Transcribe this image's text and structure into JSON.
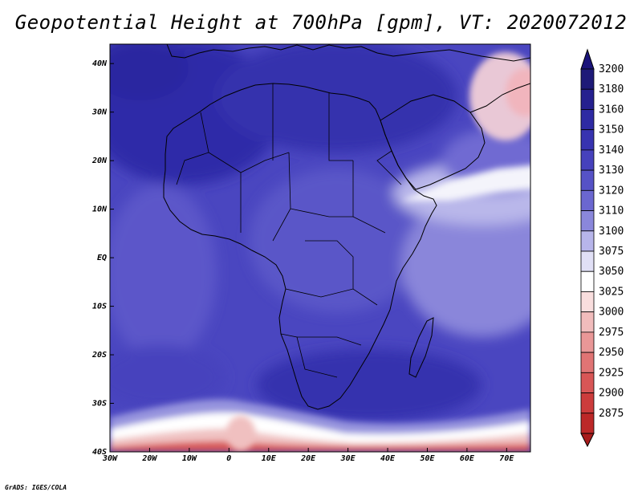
{
  "title": "Geopotential Height at 700hPa [gpm], VT: 2020072012",
  "footer": "GrADS: IGES/COLA",
  "map": {
    "lon_range": [
      -30,
      76
    ],
    "lat_range": [
      -40,
      44
    ],
    "x_ticks": [
      {
        "lon": -30,
        "label": "30W"
      },
      {
        "lon": -20,
        "label": "20W"
      },
      {
        "lon": -10,
        "label": "10W"
      },
      {
        "lon": 0,
        "label": "0"
      },
      {
        "lon": 10,
        "label": "10E"
      },
      {
        "lon": 20,
        "label": "20E"
      },
      {
        "lon": 30,
        "label": "30E"
      },
      {
        "lon": 40,
        "label": "40E"
      },
      {
        "lon": 50,
        "label": "50E"
      },
      {
        "lon": 60,
        "label": "60E"
      },
      {
        "lon": 70,
        "label": "70E"
      }
    ],
    "y_ticks": [
      {
        "lat": 40,
        "label": "40N"
      },
      {
        "lat": 30,
        "label": "30N"
      },
      {
        "lat": 20,
        "label": "20N"
      },
      {
        "lat": 10,
        "label": "10N"
      },
      {
        "lat": 0,
        "label": "EQ"
      },
      {
        "lat": -10,
        "label": "10S"
      },
      {
        "lat": -20,
        "label": "20S"
      },
      {
        "lat": -30,
        "label": "30S"
      },
      {
        "lat": -40,
        "label": "40S"
      }
    ]
  },
  "colorbar": {
    "levels": [
      {
        "label": "3200",
        "color": "#1e1a78"
      },
      {
        "label": "3180",
        "color": "#25208f"
      },
      {
        "label": "3160",
        "color": "#2e2aa3"
      },
      {
        "label": "3150",
        "color": "#3733b0"
      },
      {
        "label": "3140",
        "color": "#4641bc"
      },
      {
        "label": "3130",
        "color": "#5652c6"
      },
      {
        "label": "3120",
        "color": "#6b67d0"
      },
      {
        "label": "3110",
        "color": "#8a87db"
      },
      {
        "label": "3100",
        "color": "#b7b5ea"
      },
      {
        "label": "3075",
        "color": "#e1e0f6"
      },
      {
        "label": "3050",
        "color": "#ffffff"
      },
      {
        "label": "3025",
        "color": "#f9dede"
      },
      {
        "label": "3000",
        "color": "#f1bcbc"
      },
      {
        "label": "2975",
        "color": "#e99797"
      },
      {
        "label": "2950",
        "color": "#e07474"
      },
      {
        "label": "2925",
        "color": "#d85656"
      },
      {
        "label": "2900",
        "color": "#cc3c3c"
      },
      {
        "label": "2875",
        "color": "#bc2828"
      }
    ],
    "top_arrow_color": "#1a137a",
    "bottom_arrow_color": "#a81c1c"
  }
}
